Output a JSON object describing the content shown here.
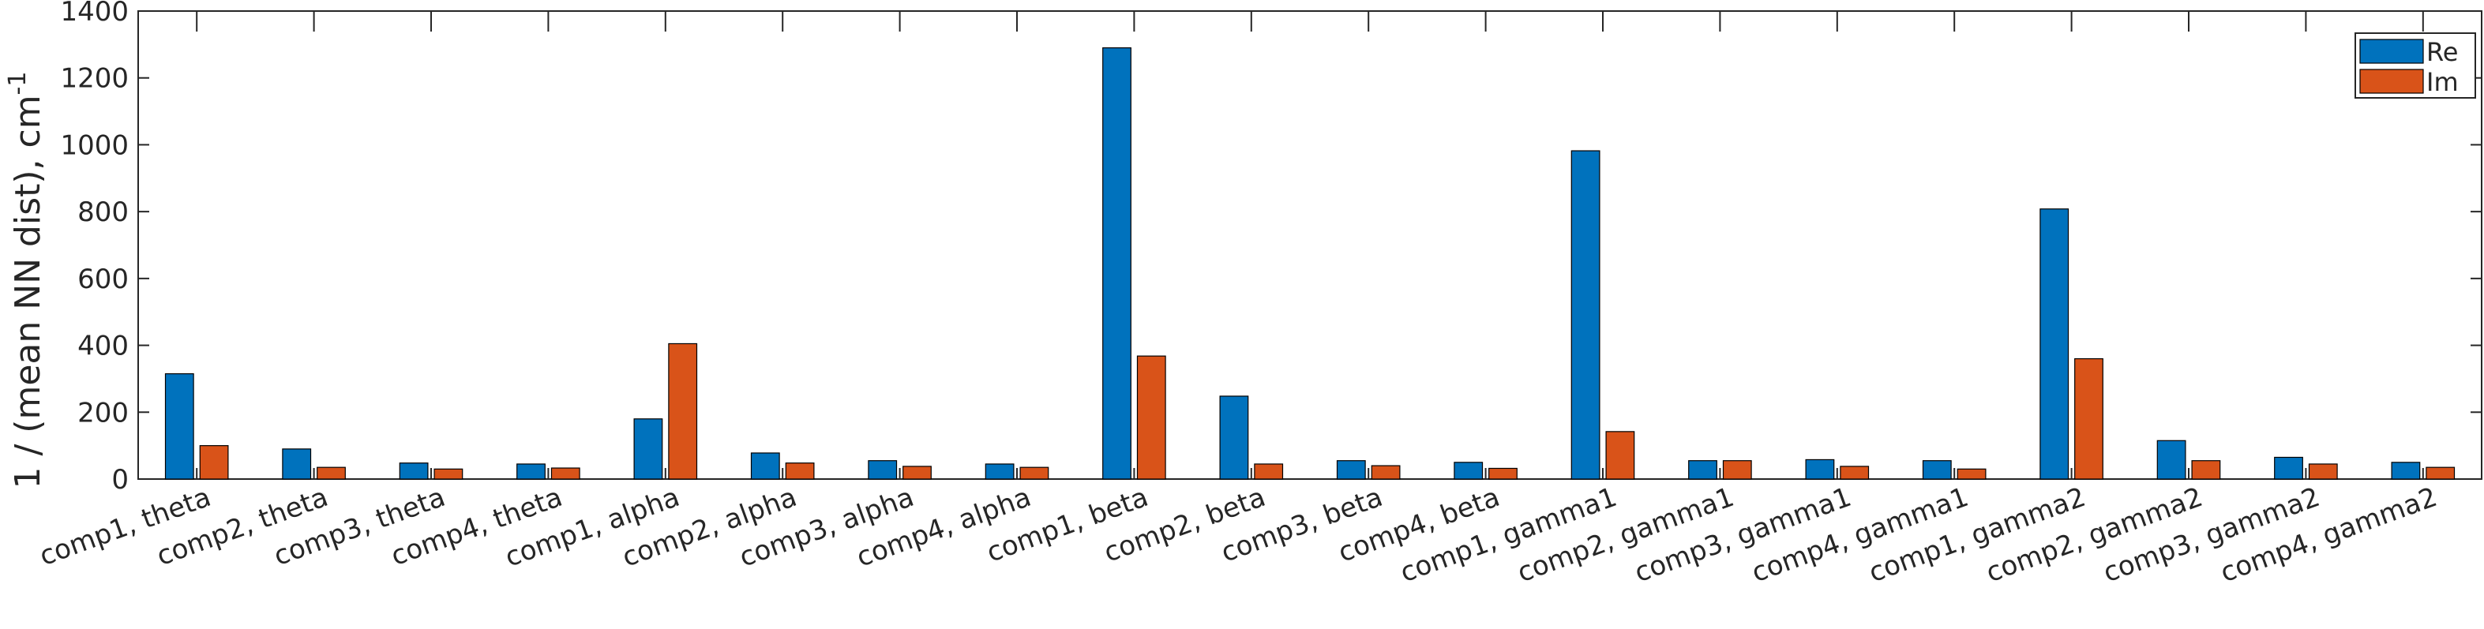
{
  "chart_data": {
    "type": "bar",
    "title": "",
    "xlabel": "",
    "ylabel": "1 / (mean NN dist), cm",
    "ylabel_superscript": "-1",
    "ylim": [
      0,
      1400
    ],
    "yticks": [
      0,
      200,
      400,
      600,
      800,
      1000,
      1200,
      1400
    ],
    "grid": false,
    "legend_position": "top-right",
    "categories": [
      "comp1, theta",
      "comp2, theta",
      "comp3, theta",
      "comp4, theta",
      "comp1, alpha",
      "comp2, alpha",
      "comp3, alpha",
      "comp4, alpha",
      "comp1, beta",
      "comp2, beta",
      "comp3, beta",
      "comp4, beta",
      "comp1, gamma1",
      "comp2, gamma1",
      "comp3, gamma1",
      "comp4, gamma1",
      "comp1, gamma2",
      "comp2, gamma2",
      "comp3, gamma2",
      "comp4, gamma2"
    ],
    "series": [
      {
        "name": "Re",
        "color": "#0072BD",
        "values": [
          315,
          90,
          48,
          45,
          180,
          78,
          55,
          45,
          1290,
          248,
          55,
          50,
          982,
          55,
          58,
          55,
          808,
          115,
          65,
          50
        ]
      },
      {
        "name": "Im",
        "color": "#D95319",
        "values": [
          100,
          35,
          30,
          33,
          405,
          48,
          38,
          35,
          368,
          45,
          40,
          32,
          142,
          55,
          38,
          30,
          360,
          55,
          45,
          35
        ]
      }
    ]
  }
}
